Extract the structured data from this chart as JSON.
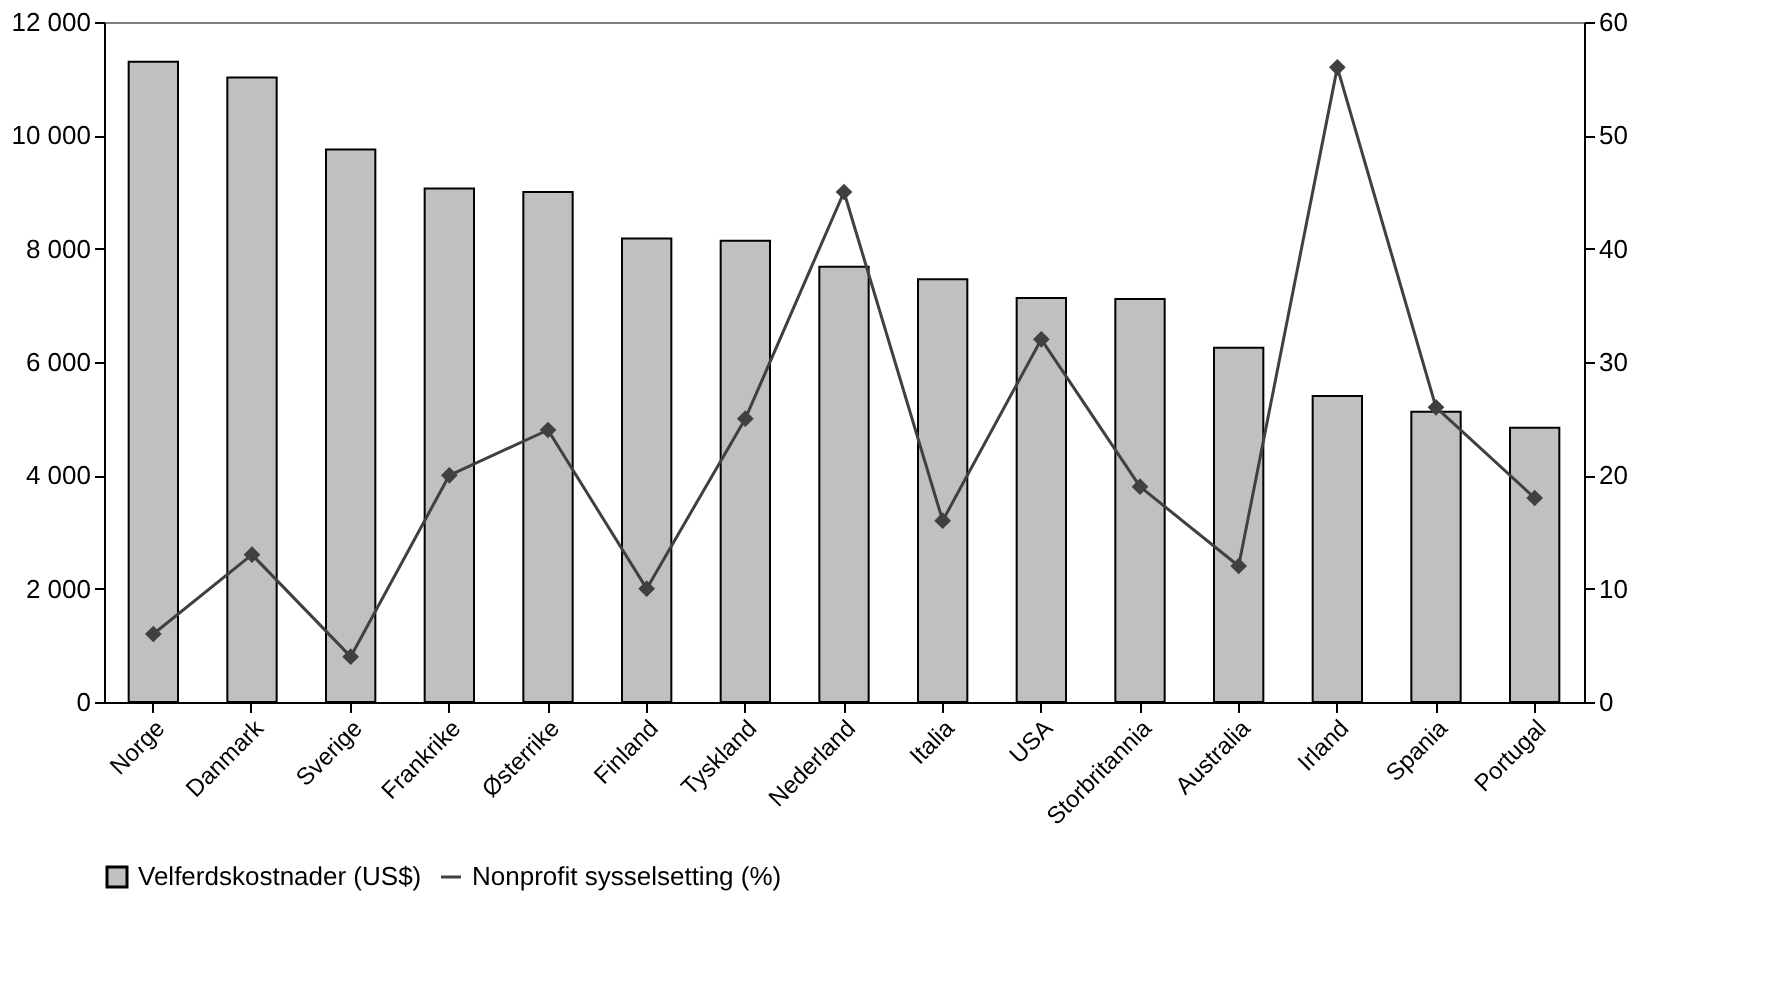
{
  "chart_data": {
    "type": "bar",
    "categories": [
      "Norge",
      "Danmark",
      "Sverige",
      "Frankrike",
      "Østerrike",
      "Finland",
      "Tyskland",
      "Nederland",
      "Italia",
      "USA",
      "Storbritannia",
      "Australia",
      "Irland",
      "Spania",
      "Portugal"
    ],
    "series": [
      {
        "name": "Velferdskostnader (US$)",
        "color": "#c0c0c0",
        "values": [
          11300,
          11020,
          9750,
          9060,
          9000,
          8180,
          8140,
          7680,
          7460,
          7130,
          7110,
          6250,
          5400,
          5120,
          4840
        ]
      },
      {
        "name": "Nonprofit sysselsetting (%)",
        "type": "line",
        "axis": "y2",
        "color": "#404040",
        "marker": "diamond",
        "values": [
          6,
          13,
          4,
          20,
          24,
          10,
          25,
          45,
          16,
          32,
          19,
          12,
          56,
          26,
          18
        ]
      }
    ],
    "ylim": [
      0,
      12000
    ],
    "yticks": [
      0,
      {
        "value": 2000,
        "label": "2 000"
      },
      {
        "value": 4000,
        "label": "4 000"
      },
      {
        "value": 6000,
        "label": "6 000"
      },
      {
        "value": 8000,
        "label": "8 000"
      },
      {
        "value": 10000,
        "label": "10 000"
      },
      {
        "value": 12000,
        "label": "12 000"
      }
    ],
    "y2lim": [
      0,
      60
    ],
    "y2ticks": [
      0,
      10,
      20,
      30,
      40,
      50,
      60
    ],
    "grid": false,
    "legend": "bottom"
  }
}
